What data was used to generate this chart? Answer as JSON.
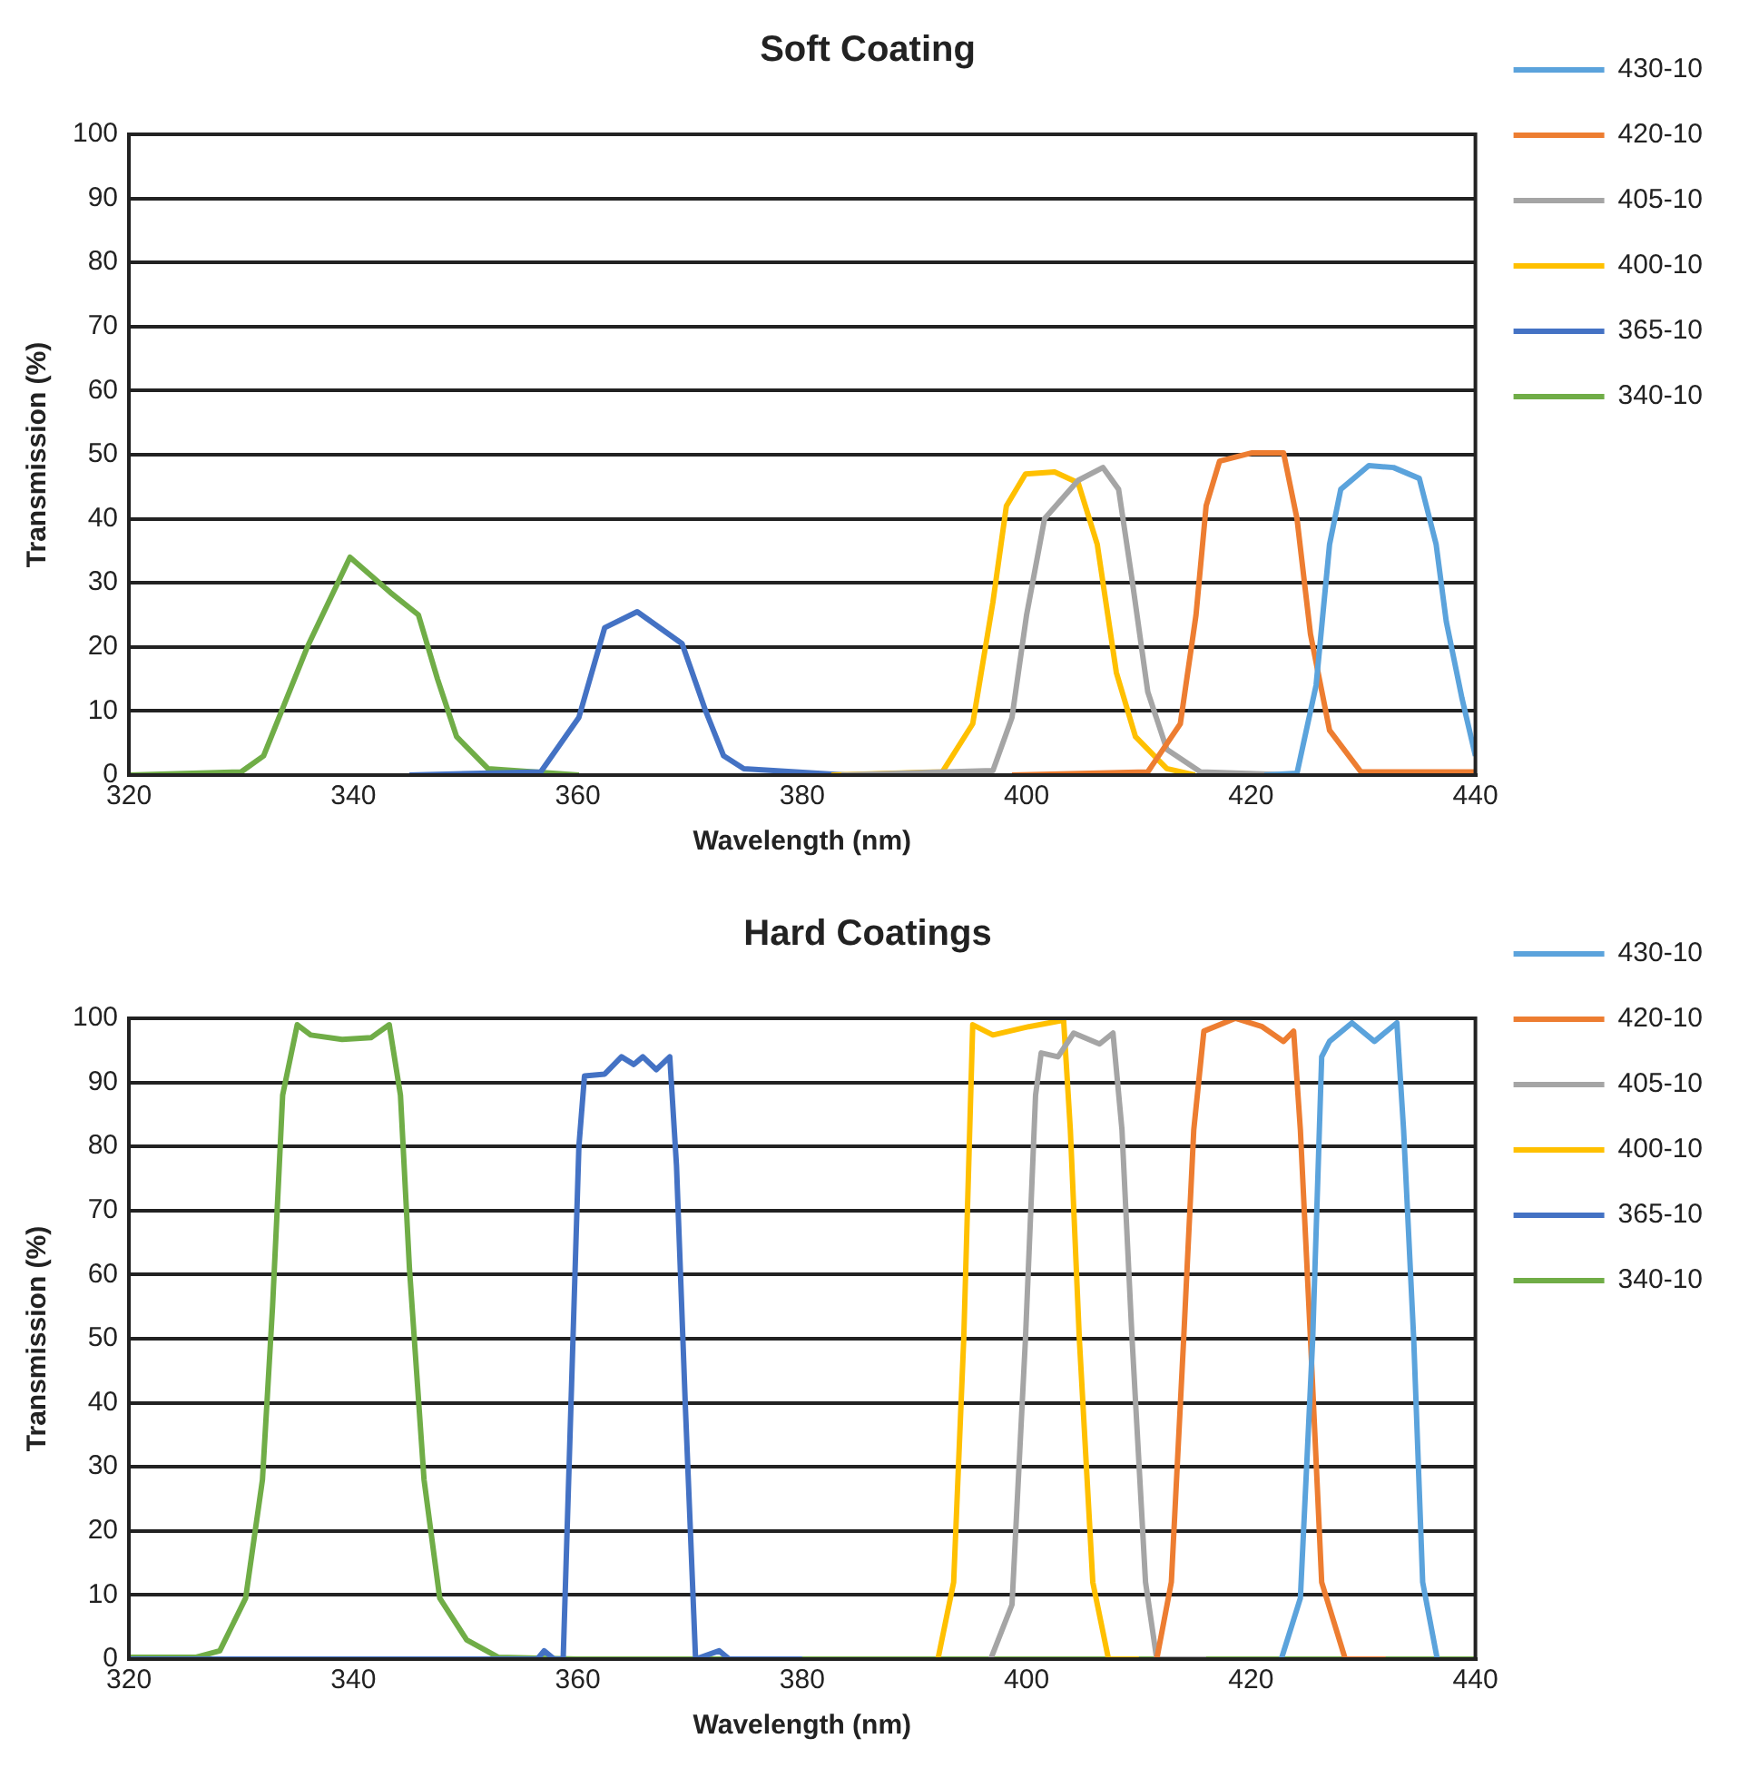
{
  "chart_data": [
    {
      "type": "line",
      "title": "Soft Coating",
      "xlabel": "Wavelength (nm)",
      "ylabel": "Transmission (%)",
      "xlim": [
        320,
        440
      ],
      "xticks": [
        320,
        340,
        360,
        380,
        400,
        420,
        440
      ],
      "ylim": [
        0,
        100
      ],
      "yticks": [
        0,
        10,
        20,
        30,
        40,
        50,
        60,
        70,
        80,
        90,
        100
      ],
      "grid": "y",
      "legend": "right",
      "marker": "none",
      "series": [
        {
          "name": "430-10",
          "color": "#5ba3dc",
          "x": [
            421.2,
            424.1,
            425.8,
            427,
            428,
            430.5,
            432.7,
            435,
            436.5,
            437.4,
            438.8,
            440
          ],
          "values": [
            0,
            0.3,
            14,
            36,
            44.6,
            48.3,
            48,
            46.3,
            36,
            24,
            12,
            3
          ]
        },
        {
          "name": "420-10",
          "color": "#ed7d31",
          "x": [
            398.7,
            410.8,
            413.7,
            415.1,
            416,
            417.2,
            420.1,
            422.9,
            424.1,
            425.3,
            427,
            429.8,
            440
          ],
          "values": [
            0,
            0.5,
            8,
            25,
            42,
            49,
            50.3,
            50.3,
            40,
            22,
            7,
            0.5,
            0.5
          ]
        },
        {
          "name": "405-10",
          "color": "#a5a5a5",
          "x": [
            383.5,
            397,
            398.7,
            400,
            401.6,
            404.6,
            406.8,
            408.2,
            409.4,
            410.8,
            412.5,
            415.5,
            424
          ],
          "values": [
            0,
            0.7,
            9,
            25,
            40,
            46,
            48,
            44.6,
            30.5,
            13,
            4,
            0.5,
            0
          ]
        },
        {
          "name": "400-10",
          "color": "#ffc000",
          "x": [
            382.6,
            392.5,
            395.2,
            397,
            398.2,
            399.9,
            402.5,
            404.6,
            406.3,
            408,
            409.7,
            412.5,
            415
          ],
          "values": [
            0,
            0.5,
            8,
            27,
            42,
            47,
            47.3,
            45.6,
            36,
            16,
            6,
            1,
            0
          ]
        },
        {
          "name": "365-10",
          "color": "#4472c4",
          "x": [
            345,
            356.7,
            360.1,
            362.4,
            365.3,
            369.3,
            371.4,
            373,
            374.8,
            384
          ],
          "values": [
            0,
            0.5,
            9,
            23,
            25.5,
            20.5,
            10,
            3,
            1,
            0
          ]
        },
        {
          "name": "340-10",
          "color": "#70ad47",
          "x": [
            320,
            330,
            332,
            335.9,
            339.7,
            343.3,
            345.8,
            347.5,
            349.2,
            352,
            360.1
          ],
          "values": [
            0,
            0.5,
            3,
            20,
            34,
            28.5,
            25,
            15,
            6,
            1,
            0
          ]
        }
      ]
    },
    {
      "type": "line",
      "title": "Hard Coatings",
      "xlabel": "Wavelength (nm)",
      "ylabel": "Transmission (%)",
      "xlim": [
        320,
        440
      ],
      "xticks": [
        320,
        340,
        360,
        380,
        400,
        420,
        440
      ],
      "ylim": [
        0,
        100
      ],
      "yticks": [
        0,
        10,
        20,
        30,
        40,
        50,
        60,
        70,
        80,
        90,
        100
      ],
      "grid": "y",
      "legend": "right",
      "marker": "none",
      "series": [
        {
          "name": "430-10",
          "color": "#5ba3dc",
          "x": [
            422.7,
            424.4,
            425.5,
            426.3,
            427,
            429,
            431,
            433,
            433.6,
            434.5,
            435.3,
            436.6
          ],
          "values": [
            0,
            9.5,
            50,
            94,
            96.4,
            99.3,
            96.4,
            99.3,
            82.6,
            50,
            12,
            0
          ]
        },
        {
          "name": "420-10",
          "color": "#ed7d31",
          "x": [
            411.6,
            412.9,
            414,
            414.9,
            415.8,
            418.6,
            421,
            422.9,
            423.8,
            424.4,
            425.3,
            426.3,
            428.4,
            432
          ],
          "values": [
            0,
            12,
            50,
            82.6,
            98,
            100,
            98.7,
            96.4,
            98,
            82.6,
            50,
            12,
            0,
            0
          ]
        },
        {
          "name": "405-10",
          "color": "#a5a5a5",
          "x": [
            396.8,
            398.7,
            399.9,
            400.8,
            401.3,
            402.8,
            404.2,
            406.5,
            407.7,
            408.5,
            409.4,
            410.6,
            411.6,
            416
          ],
          "values": [
            0,
            8.5,
            50,
            88,
            94.6,
            94,
            97.7,
            96,
            97.7,
            82.6,
            50,
            12,
            0,
            0
          ]
        },
        {
          "name": "400-10",
          "color": "#ffc000",
          "x": [
            392.1,
            393.5,
            394.4,
            395.2,
            397,
            400.2,
            403.3,
            403.9,
            404.7,
            405.9,
            407.3,
            410
          ],
          "values": [
            0,
            12,
            50,
            99,
            97.4,
            98.7,
            99.7,
            82.6,
            50,
            12,
            0,
            0
          ]
        },
        {
          "name": "365-10",
          "color": "#4472c4",
          "x": [
            320,
            356.4,
            357,
            357.9,
            358.7,
            360.1,
            360.6,
            362.4,
            363.9,
            365,
            365.8,
            367,
            368.2,
            368.8,
            369.6,
            370.5,
            372.6,
            373.5,
            380
          ],
          "values": [
            0,
            0,
            1.3,
            0,
            0,
            80,
            91,
            91.3,
            94,
            92.8,
            94,
            92,
            94,
            77,
            39,
            0,
            1.3,
            0,
            0
          ]
        },
        {
          "name": "340-10",
          "color": "#70ad47",
          "x": [
            320,
            326,
            328.1,
            330.4,
            331.9,
            332.8,
            333.7,
            335,
            336.2,
            339,
            341.6,
            343.2,
            344.2,
            345,
            346.3,
            347.7,
            350.1,
            352.9,
            360,
            440
          ],
          "values": [
            0.3,
            0.3,
            1.3,
            9.5,
            28,
            55,
            88,
            99,
            97.4,
            96.7,
            97,
            99,
            88,
            61,
            28,
            9.5,
            3,
            0.3,
            0,
            0
          ]
        }
      ]
    }
  ]
}
